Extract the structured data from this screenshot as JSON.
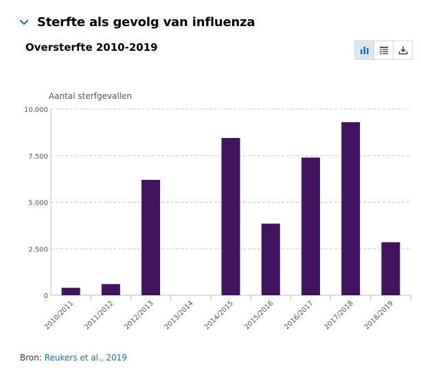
{
  "section": {
    "title": "Sterfte als gevolg van influenza",
    "expand_icon": "chevron-down-icon"
  },
  "toolbar": {
    "buttons": [
      {
        "name": "chart-view",
        "icon": "bar-chart-icon",
        "active": true
      },
      {
        "name": "table-view",
        "icon": "table-icon",
        "active": false
      },
      {
        "name": "download",
        "icon": "download-icon",
        "active": false
      }
    ]
  },
  "colors": {
    "bar": "#42145f",
    "accent": "#1a70b4",
    "grid": "#c8c8c8"
  },
  "source": {
    "prefix": "Bron: ",
    "link_text": "Reukers et al., 2019"
  },
  "chart_data": {
    "type": "bar",
    "title": "Oversterfte 2010-2019",
    "ylabel": "Aantal sterfgevallen",
    "xlabel": "",
    "categories": [
      "2010/2011",
      "2011/2012",
      "2012/2013",
      "2013/2014",
      "2014/2015",
      "2015/2016",
      "2016/2017",
      "2017/2018",
      "2018/2019"
    ],
    "values": [
      400,
      600,
      6200,
      0,
      8450,
      3850,
      7400,
      9300,
      2850
    ],
    "ylim": [
      0,
      10000
    ],
    "yticks": [
      0,
      2500,
      5000,
      7500,
      10000
    ],
    "ytick_labels": [
      "0",
      "2.500",
      "5.000",
      "7.500",
      "10.000"
    ],
    "grid": true,
    "legend": "none"
  }
}
